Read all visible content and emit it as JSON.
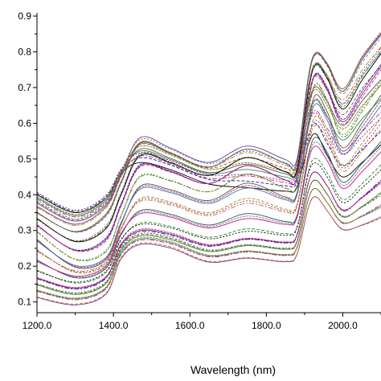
{
  "chart_data": {
    "type": "line",
    "title": "",
    "xlabel": "Wavelength (nm)",
    "ylabel": "",
    "xlim": [
      1200,
      2100
    ],
    "ylim": [
      0.07,
      0.9
    ],
    "x_ticks": [
      1200,
      1400,
      1600,
      1800,
      2000
    ],
    "x_tick_labels": [
      "1200.0",
      "1400.0",
      "1600.0",
      "1800.0",
      "2000.0"
    ],
    "y_ticks": [
      0.1,
      0.2,
      0.3,
      0.4,
      0.5,
      0.6,
      0.7,
      0.8,
      0.9
    ],
    "y_tick_labels": [
      "0.1",
      "0.2",
      "0.3",
      "0.4",
      "0.5",
      "0.6",
      "0.7",
      "0.8",
      "0.9"
    ],
    "grid": false,
    "legend": "none",
    "x": [
      1200,
      1300,
      1380,
      1420,
      1470,
      1550,
      1650,
      1750,
      1850,
      1880,
      1910,
      1930,
      1960,
      2000,
      2050,
      2100
    ],
    "envelopes": [
      {
        "name": "",
        "values": [
          0.41,
          0.36,
          0.4,
          0.47,
          0.5,
          0.48,
          0.44,
          0.43,
          0.42,
          0.43,
          0.55,
          0.58,
          0.52,
          0.46,
          0.5,
          0.55
        ]
      },
      {
        "name": "",
        "values": [
          0.36,
          0.31,
          0.36,
          0.45,
          0.56,
          0.53,
          0.49,
          0.54,
          0.5,
          0.5,
          0.74,
          0.81,
          0.78,
          0.71,
          0.8,
          0.87
        ]
      },
      {
        "name": "",
        "values": [
          0.29,
          0.21,
          0.23,
          0.33,
          0.44,
          0.43,
          0.4,
          0.45,
          0.41,
          0.42,
          0.62,
          0.7,
          0.65,
          0.55,
          0.62,
          0.7
        ]
      },
      {
        "name": "",
        "values": [
          0.18,
          0.15,
          0.18,
          0.27,
          0.31,
          0.3,
          0.27,
          0.29,
          0.28,
          0.3,
          0.45,
          0.48,
          0.44,
          0.37,
          0.41,
          0.46
        ]
      },
      {
        "name": "",
        "values": [
          0.11,
          0.09,
          0.12,
          0.22,
          0.26,
          0.25,
          0.21,
          0.22,
          0.21,
          0.23,
          0.36,
          0.39,
          0.35,
          0.3,
          0.31,
          0.33
        ]
      }
    ],
    "curve_count": 44,
    "colors": [
      "#000000",
      "#1f1f9f",
      "#8b1a8b",
      "#c0307a",
      "#2e8b57",
      "#7a7a00",
      "#555555",
      "#a04040",
      "#3a6fbf",
      "#b8860b",
      "#6a3d9a",
      "#d2691e",
      "#2f4f4f",
      "#708090",
      "#c71585",
      "#228b22"
    ],
    "x_axis_text": {
      "unit_title": "Wavelength (nm)"
    }
  }
}
